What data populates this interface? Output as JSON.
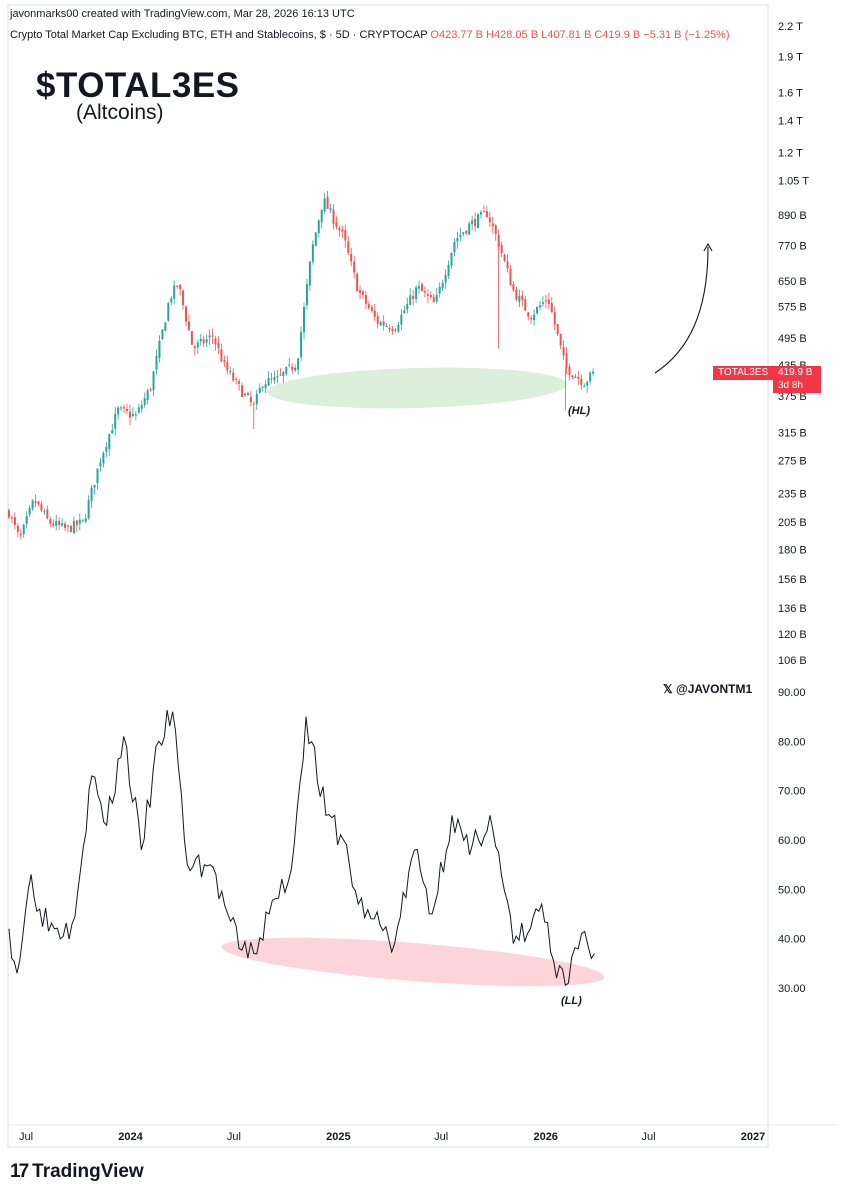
{
  "header": {
    "created_by": "javonmarks00 created with TradingView.com, Mar 28, 2026 16:13 UTC",
    "symbol_desc": "Crypto Total Market Cap Excluding BTC, ETH and Stablecoins, $ · 5D · CRYPTOCAP",
    "ohlc": {
      "o": "O423.77 B",
      "h": "H428.05 B",
      "l": "L407.81 B",
      "c": "C419.9 B",
      "chg": "−5.31 B (−1.25%)"
    }
  },
  "overlay": {
    "ticker": "$TOTAL3ES",
    "subtitle": "(Altcoins)",
    "handle": "@JAVONTM1"
  },
  "price_badge": {
    "name": "TOTAL3ES",
    "value": "419.9 B",
    "countdown": "3d 8h"
  },
  "footer": {
    "brand": "TradingView",
    "logo": "tradingview-logo"
  },
  "colors": {
    "up": "#26a69a",
    "down": "#ef5350",
    "badge": "#f23645",
    "green_ellipse": "#cfe9cf",
    "red_ellipse": "#fbc9d1"
  },
  "chart_data": [
    {
      "type": "candlestick",
      "scale": "log",
      "price_axis_labels": [
        "2.2 T",
        "1.9 T",
        "1.6 T",
        "1.4 T",
        "1.2 T",
        "1.05 T",
        "890 B",
        "770 B",
        "650 B",
        "575 B",
        "495 B",
        "435 B",
        "375 B",
        "315 B",
        "275 B",
        "235 B",
        "205 B",
        "180 B",
        "156 B",
        "136 B",
        "120 B",
        "106 B"
      ],
      "price_axis_values_billions": [
        2200,
        1900,
        1600,
        1400,
        1200,
        1050,
        890,
        770,
        650,
        575,
        495,
        435,
        375,
        315,
        275,
        235,
        205,
        180,
        156,
        136,
        120,
        106
      ],
      "annotations": [
        "(HL)"
      ],
      "close_path_billions": [
        [
          "2023-06-01",
          215
        ],
        [
          "2023-06-20",
          188
        ],
        [
          "2023-07-15",
          228
        ],
        [
          "2023-08-10",
          205
        ],
        [
          "2023-09-10",
          198
        ],
        [
          "2023-10-10",
          205
        ],
        [
          "2023-11-10",
          280
        ],
        [
          "2023-12-10",
          350
        ],
        [
          "2024-01-10",
          340
        ],
        [
          "2024-02-05",
          390
        ],
        [
          "2024-03-10",
          600
        ],
        [
          "2024-03-25",
          640
        ],
        [
          "2024-04-20",
          470
        ],
        [
          "2024-05-25",
          500
        ],
        [
          "2024-06-15",
          430
        ],
        [
          "2024-07-10",
          390
        ],
        [
          "2024-08-05",
          355
        ],
        [
          "2024-08-20",
          400
        ],
        [
          "2024-09-15",
          405
        ],
        [
          "2024-10-20",
          440
        ],
        [
          "2024-11-15",
          750
        ],
        [
          "2024-12-05",
          960
        ],
        [
          "2025-01-10",
          800
        ],
        [
          "2025-02-05",
          620
        ],
        [
          "2025-03-10",
          535
        ],
        [
          "2025-04-10",
          520
        ],
        [
          "2025-05-20",
          630
        ],
        [
          "2025-06-20",
          580
        ],
        [
          "2025-07-25",
          790
        ],
        [
          "2025-08-20",
          850
        ],
        [
          "2025-09-20",
          900
        ],
        [
          "2025-10-10",
          780
        ],
        [
          "2025-11-05",
          620
        ],
        [
          "2025-12-05",
          550
        ],
        [
          "2026-01-05",
          600
        ],
        [
          "2026-02-05",
          430
        ],
        [
          "2026-03-10",
          400
        ],
        [
          "2026-03-28",
          419.9
        ]
      ]
    },
    {
      "type": "line",
      "y_axis_labels": [
        "90.00",
        "80.00",
        "70.00",
        "60.00",
        "50.00",
        "40.00",
        "30.00"
      ],
      "y_axis_values": [
        90,
        80,
        70,
        60,
        50,
        40,
        30
      ],
      "annotations": [
        "(LL)"
      ],
      "points": [
        [
          "2023-06-01",
          42
        ],
        [
          "2023-06-15",
          33
        ],
        [
          "2023-07-10",
          53
        ],
        [
          "2023-07-25",
          46
        ],
        [
          "2023-08-20",
          42
        ],
        [
          "2023-09-20",
          43
        ],
        [
          "2023-10-25",
          73
        ],
        [
          "2023-11-20",
          63
        ],
        [
          "2023-12-20",
          81
        ],
        [
          "2024-01-20",
          58
        ],
        [
          "2024-02-20",
          80
        ],
        [
          "2024-03-15",
          86
        ],
        [
          "2024-04-10",
          55
        ],
        [
          "2024-05-20",
          55
        ],
        [
          "2024-06-20",
          45
        ],
        [
          "2024-07-10",
          38
        ],
        [
          "2024-08-05",
          37
        ],
        [
          "2024-09-01",
          45
        ],
        [
          "2024-10-10",
          54
        ],
        [
          "2024-11-05",
          85
        ],
        [
          "2024-12-10",
          65
        ],
        [
          "2025-01-10",
          60
        ],
        [
          "2025-02-05",
          47
        ],
        [
          "2025-03-05",
          44
        ],
        [
          "2025-04-10",
          39
        ],
        [
          "2025-05-15",
          58
        ],
        [
          "2025-06-15",
          45
        ],
        [
          "2025-07-20",
          65
        ],
        [
          "2025-08-20",
          57
        ],
        [
          "2025-09-25",
          65
        ],
        [
          "2025-10-15",
          53
        ],
        [
          "2025-11-05",
          39
        ],
        [
          "2025-12-05",
          42
        ],
        [
          "2025-12-25",
          47
        ],
        [
          "2026-01-20",
          32
        ],
        [
          "2026-02-10",
          31
        ],
        [
          "2026-03-05",
          41
        ],
        [
          "2026-03-28",
          37
        ]
      ]
    }
  ],
  "time_axis_labels": [
    {
      "text": "Jul",
      "date": "2023-07-01",
      "bold": false
    },
    {
      "text": "2024",
      "date": "2024-01-01",
      "bold": true
    },
    {
      "text": "Jul",
      "date": "2024-07-01",
      "bold": false
    },
    {
      "text": "2025",
      "date": "2025-01-01",
      "bold": true
    },
    {
      "text": "Jul",
      "date": "2025-07-01",
      "bold": false
    },
    {
      "text": "2026",
      "date": "2026-01-01",
      "bold": true
    },
    {
      "text": "Jul",
      "date": "2026-07-01",
      "bold": false
    },
    {
      "text": "2027",
      "date": "2027-01-01",
      "bold": true
    }
  ]
}
